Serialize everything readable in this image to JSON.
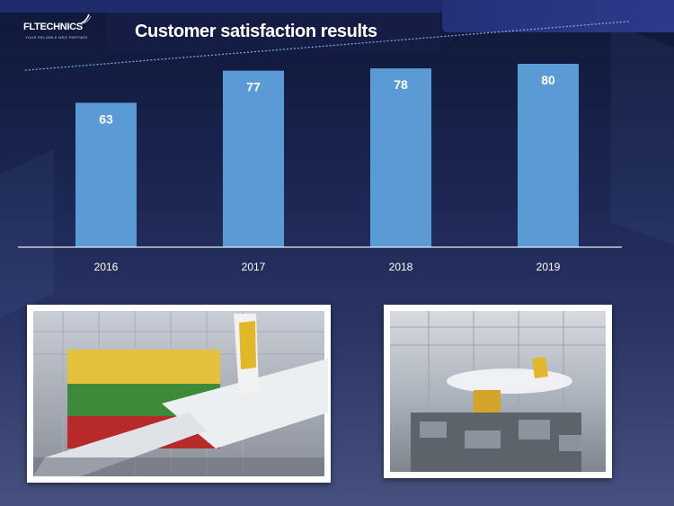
{
  "header": {
    "logo_text": "FLTECHNICS",
    "logo_tagline": "YOUR RELIABLE MRO PARTNER",
    "title": "Customer satisfaction results"
  },
  "chart_data": {
    "type": "bar",
    "title": "Customer satisfaction results",
    "categories": [
      "2016",
      "2017",
      "2018",
      "2019"
    ],
    "values": [
      63,
      77,
      78,
      80
    ],
    "data_labels": [
      "63",
      "77",
      "78",
      "80"
    ],
    "ylim": [
      0,
      100
    ],
    "grid": false,
    "trendline": true,
    "bar_color": "#5b9bd5",
    "trend_color": "#7fb3e6"
  },
  "photos": [
    {
      "name": "hangar-flag-aircraft-photo"
    },
    {
      "name": "hangar-workshop-photo"
    }
  ],
  "colors": {
    "background": "#1a2550",
    "title_text": "#ffffff"
  }
}
